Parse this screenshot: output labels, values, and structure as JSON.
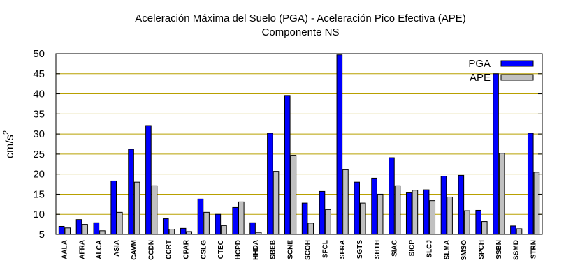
{
  "chart_data": {
    "type": "bar",
    "title_line1": "Aceleración Máxima del Suelo (PGA) -  Aceleración Pico Efectiva (APE)",
    "title_line2": "Componente NS",
    "ylabel_base": "cm/s",
    "ylabel_exp": "2",
    "xlabel": "",
    "ylim": [
      5,
      50
    ],
    "yticks": [
      5,
      10,
      15,
      20,
      25,
      30,
      35,
      40,
      45,
      50
    ],
    "grid": true,
    "legend_position": "top-right",
    "categories": [
      "AALA",
      "AFRA",
      "ALCA",
      "ASIA",
      "CAVM",
      "CCDN",
      "CCRT",
      "CPAR",
      "CSLG",
      "CTEC",
      "HCPD",
      "HHDA",
      "SBEB",
      "SCNE",
      "SCOH",
      "SFCL",
      "SFRA",
      "SGTS",
      "SHTH",
      "SIAC",
      "SICP",
      "SLCJ",
      "SLMA",
      "SMSO",
      "SPCH",
      "SSBN",
      "SSMD",
      "STRN"
    ],
    "series": [
      {
        "name": "PGA",
        "color": "#0000ff",
        "values": [
          7.0,
          8.7,
          7.9,
          18.3,
          26.2,
          32.1,
          8.9,
          6.5,
          13.8,
          10.0,
          11.7,
          7.9,
          30.2,
          39.6,
          12.8,
          15.7,
          49.7,
          18.0,
          19.0,
          24.1,
          15.5,
          16.1,
          19.5,
          19.7,
          11.0,
          45.0,
          7.1,
          30.2
        ]
      },
      {
        "name": "APE",
        "color": "#c0c0c0",
        "values": [
          6.6,
          7.5,
          5.9,
          10.5,
          18.0,
          17.1,
          6.3,
          5.7,
          10.5,
          7.2,
          13.1,
          5.5,
          20.7,
          24.7,
          7.8,
          11.2,
          21.1,
          12.8,
          15.0,
          17.1,
          16.0,
          13.4,
          14.3,
          10.9,
          8.2,
          25.2,
          6.4,
          20.5
        ]
      }
    ],
    "grid_color": "#b8a000",
    "axis_color": "#000000"
  }
}
